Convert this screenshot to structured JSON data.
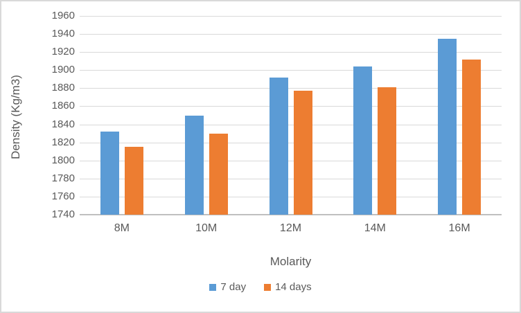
{
  "chart_data": {
    "type": "bar",
    "title": "",
    "xlabel": "Molarity",
    "ylabel": "Density (Kg/m3)",
    "categories": [
      "8M",
      "10M",
      "12M",
      "14M",
      "16M"
    ],
    "series": [
      {
        "name": "7 day",
        "color": "#5B9BD5",
        "values": [
          1832,
          1850,
          1892,
          1904,
          1935
        ]
      },
      {
        "name": "14 days",
        "color": "#ED7D31",
        "values": [
          1815,
          1830,
          1877,
          1881,
          1912
        ]
      }
    ],
    "ylim": [
      1740,
      1960
    ],
    "ytick_step": 20,
    "y_ticks": [
      1960,
      1940,
      1920,
      1900,
      1880,
      1860,
      1840,
      1820,
      1800,
      1780,
      1760,
      1740
    ],
    "grid": true,
    "legend_position": "bottom",
    "colors": {
      "grid": "#d9d9d9",
      "axis": "#bfbfbf",
      "text": "#595959",
      "frame_border": "#d9d9d9",
      "top_edge": "#3f3f3f"
    }
  }
}
